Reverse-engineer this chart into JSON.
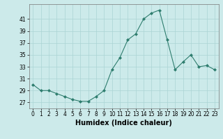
{
  "x": [
    0,
    1,
    2,
    3,
    4,
    5,
    6,
    7,
    8,
    9,
    10,
    11,
    12,
    13,
    14,
    15,
    16,
    17,
    18,
    19,
    20,
    21,
    22,
    23
  ],
  "y": [
    30,
    29,
    29,
    28.5,
    28,
    27.5,
    27.2,
    27.2,
    28,
    29,
    32.5,
    34.5,
    37.5,
    38.5,
    41,
    42,
    42.5,
    37.5,
    32.5,
    33.8,
    35,
    33,
    33.2,
    32.5
  ],
  "line_color": "#2e7d6e",
  "marker": "D",
  "marker_size": 2,
  "bg_color": "#cceaea",
  "grid_color": "#aad4d4",
  "xlabel": "Humidex (Indice chaleur)",
  "xlim": [
    -0.5,
    23.5
  ],
  "ylim": [
    26,
    43.5
  ],
  "yticks": [
    27,
    29,
    31,
    33,
    35,
    37,
    39,
    41
  ],
  "xticks": [
    0,
    1,
    2,
    3,
    4,
    5,
    6,
    7,
    8,
    9,
    10,
    11,
    12,
    13,
    14,
    15,
    16,
    17,
    18,
    19,
    20,
    21,
    22,
    23
  ],
  "tick_label_fontsize": 5.5,
  "xlabel_fontsize": 7.0
}
